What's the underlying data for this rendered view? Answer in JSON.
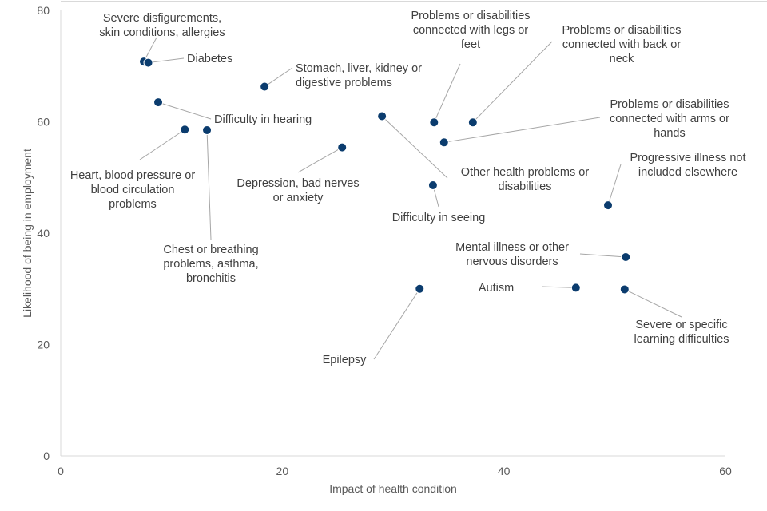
{
  "chart_data": {
    "type": "scatter",
    "title": "",
    "xlabel": "Impact of health condition",
    "ylabel": "Likelihood of being in employment",
    "xlim": [
      0,
      60
    ],
    "ylim": [
      0,
      80
    ],
    "x_ticks": [
      "0",
      "20",
      "40",
      "60"
    ],
    "y_ticks": [
      "0",
      "20",
      "40",
      "60",
      "80"
    ],
    "grid": false,
    "legend": "none",
    "marker_color": "#0b3c6e",
    "points": [
      {
        "label": "Severe disfigurements, skin conditions, allergies",
        "x": 7.5,
        "y": 70.8
      },
      {
        "label": "Diabetes",
        "x": 7.9,
        "y": 70.6
      },
      {
        "label": "Stomach, liver, kidney or digestive problems",
        "x": 18.4,
        "y": 66.3
      },
      {
        "label": "Difficulty in hearing",
        "x": 8.8,
        "y": 63.5
      },
      {
        "label": "Heart, blood pressure or blood circulation problems",
        "x": 11.2,
        "y": 58.6
      },
      {
        "label": "Chest or breathing problems, asthma, bronchitis",
        "x": 13.2,
        "y": 58.5
      },
      {
        "label": "Depression, bad nerves or anxiety",
        "x": 25.4,
        "y": 55.4
      },
      {
        "label": "Other health problems or disabilities",
        "x": 29.0,
        "y": 61.0
      },
      {
        "label": "Problems or disabilities connected with legs or feet",
        "x": 33.7,
        "y": 59.9
      },
      {
        "label": "Problems or disabilities connected with back or neck",
        "x": 37.2,
        "y": 59.9
      },
      {
        "label": "Problems or disabilities connected with arms or hands",
        "x": 34.6,
        "y": 56.3
      },
      {
        "label": "Difficulty in seeing",
        "x": 33.6,
        "y": 48.6
      },
      {
        "label": "Progressive illness not included elsewhere",
        "x": 49.4,
        "y": 45.0
      },
      {
        "label": "Mental illness or other nervous disorders",
        "x": 51.0,
        "y": 35.7
      },
      {
        "label": "Autism",
        "x": 46.5,
        "y": 30.2
      },
      {
        "label": "Severe or specific learning difficulties",
        "x": 50.9,
        "y": 29.9
      },
      {
        "label": "Epilepsy",
        "x": 32.4,
        "y": 30.0
      }
    ]
  }
}
